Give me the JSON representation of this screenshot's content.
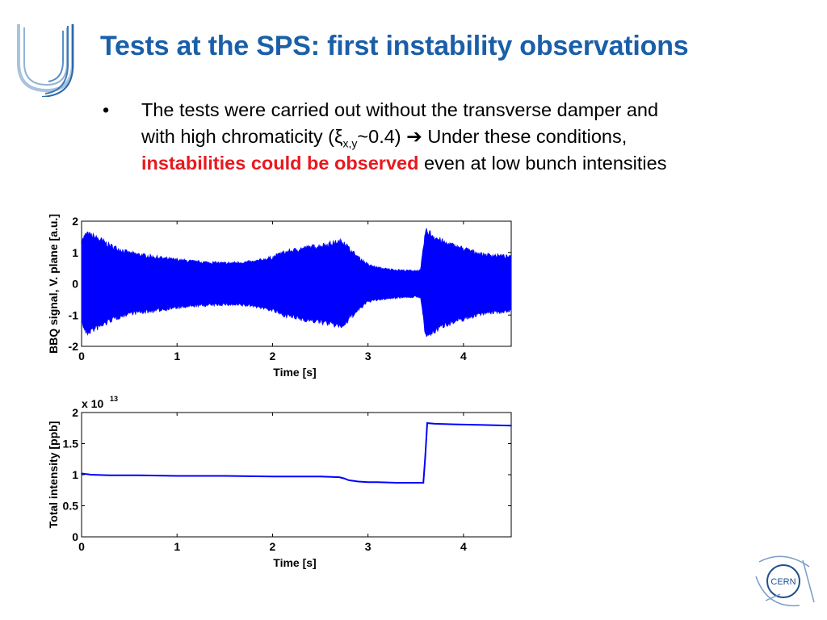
{
  "slide": {
    "title": "Tests at the SPS: first instability observations",
    "bullet": {
      "marker": "•",
      "line1": "The tests were carried out without the transverse damper and",
      "line2_prefix": "with high chromaticity (ξ",
      "line2_sub": "x,y",
      "line2_suffix": "~0.4) ➔ Under these conditions,",
      "line3_highlight": "instabilities could be observed",
      "line3_rest": " even at low bunch intensities"
    },
    "highlight_color": "#e8191e",
    "title_color": "#1a5fa8",
    "logos": {
      "left": "university-logo-icon",
      "right": "cern-logo-icon",
      "right_text": "CERN"
    }
  },
  "chart_data": [
    {
      "type": "line",
      "xlabel": "Time [s]",
      "ylabel": "BBQ signal, V. plane [a.u.]",
      "xlim": [
        0,
        4.5
      ],
      "ylim": [
        -2,
        2
      ],
      "xticks": [
        0,
        1,
        2,
        3,
        4
      ],
      "yticks": [
        -2,
        -1,
        0,
        1,
        2
      ],
      "color": "#0000ff",
      "fill": "oscillating signal envelope",
      "envelope": {
        "t": [
          0.0,
          0.05,
          0.1,
          0.2,
          0.3,
          0.5,
          0.7,
          0.9,
          1.2,
          1.5,
          1.8,
          2.0,
          2.1,
          2.3,
          2.5,
          2.65,
          2.75,
          2.8,
          2.9,
          3.0,
          3.1,
          3.2,
          3.4,
          3.55,
          3.6,
          3.62,
          3.7,
          3.8,
          4.0,
          4.2,
          4.4,
          4.5
        ],
        "upper": [
          1.45,
          1.7,
          1.65,
          1.5,
          1.3,
          1.05,
          0.95,
          0.85,
          0.75,
          0.7,
          0.75,
          0.9,
          1.05,
          1.2,
          1.3,
          1.4,
          1.45,
          1.2,
          0.9,
          0.65,
          0.55,
          0.5,
          0.45,
          0.45,
          1.75,
          1.8,
          1.6,
          1.4,
          1.2,
          1.0,
          0.95,
          0.9
        ],
        "lower": [
          -1.3,
          -1.7,
          -1.6,
          -1.45,
          -1.25,
          -1.0,
          -0.95,
          -0.85,
          -0.75,
          -0.7,
          -0.75,
          -0.9,
          -1.05,
          -1.2,
          -1.3,
          -1.4,
          -1.45,
          -1.2,
          -0.9,
          -0.6,
          -0.55,
          -0.5,
          -0.45,
          -0.45,
          -1.7,
          -1.8,
          -1.6,
          -1.4,
          -1.2,
          -1.0,
          -0.95,
          -0.9
        ]
      }
    },
    {
      "type": "line",
      "xlabel": "Time [s]",
      "ylabel": "Total intensity [ppb]",
      "multiplier": "x 10",
      "multiplier_exp": "13",
      "xlim": [
        0,
        4.5
      ],
      "ylim": [
        0,
        2
      ],
      "xticks": [
        0,
        1,
        2,
        3,
        4
      ],
      "yticks": [
        0,
        0.5,
        1,
        1.5,
        2
      ],
      "ytick_labels": [
        "0",
        "0.5",
        "1",
        "1.5",
        "2"
      ],
      "color": "#0000ff",
      "series": [
        {
          "x": [
            0.0,
            0.1,
            0.3,
            0.6,
            1.0,
            1.5,
            2.0,
            2.5,
            2.7,
            2.75,
            2.8,
            2.9,
            3.0,
            3.1,
            3.3,
            3.5,
            3.58,
            3.6,
            3.62,
            3.7,
            3.9,
            4.2,
            4.5
          ],
          "y": [
            1.02,
            1.0,
            0.99,
            0.99,
            0.98,
            0.98,
            0.97,
            0.97,
            0.96,
            0.94,
            0.91,
            0.89,
            0.88,
            0.88,
            0.87,
            0.87,
            0.87,
            1.3,
            1.83,
            1.82,
            1.81,
            1.8,
            1.79
          ]
        }
      ]
    }
  ]
}
